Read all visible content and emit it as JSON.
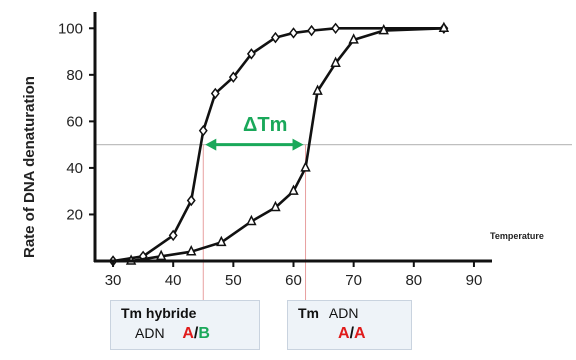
{
  "chart_data": {
    "type": "line",
    "ylabel": "Rate of DNA denaturation",
    "xlabel": "Temperature",
    "xlim": [
      27,
      93
    ],
    "ylim": [
      0,
      107
    ],
    "xticks": [
      30,
      40,
      50,
      60,
      70,
      80,
      90
    ],
    "yticks": [
      20,
      40,
      60,
      80,
      100
    ],
    "series": [
      {
        "marker": "diamond",
        "color": "#111111",
        "x": [
          30,
          35,
          40,
          43,
          45,
          47,
          50,
          53,
          57,
          60,
          63,
          67,
          85
        ],
        "y": [
          0,
          2,
          11,
          26,
          56,
          72,
          79,
          89,
          96,
          98,
          99,
          100,
          100
        ]
      },
      {
        "marker": "triangle",
        "color": "#111111",
        "x": [
          33,
          38,
          43,
          48,
          53,
          57,
          60,
          62,
          64,
          67,
          70,
          75,
          85
        ],
        "y": [
          0,
          2,
          4,
          8,
          17,
          23,
          30,
          40,
          73,
          85,
          95,
          99,
          100
        ]
      }
    ],
    "reference_line_y": 50,
    "tm_markers_x": [
      45,
      62
    ],
    "annotation": {
      "text": "ΔTm",
      "color": "#1aa85a"
    }
  },
  "boxes": {
    "hybrid": {
      "title": "Tm hybride",
      "prefix": "ADN",
      "a": "A",
      "slash": "/",
      "b": "B"
    },
    "dna": {
      "title": "Tm",
      "title_sub": "ADN",
      "a1": "A",
      "slash": "/",
      "a2": "A"
    }
  },
  "colors": {
    "red": "#e01b1b",
    "green": "#1aa85a",
    "refline": "#bfbfbf"
  }
}
